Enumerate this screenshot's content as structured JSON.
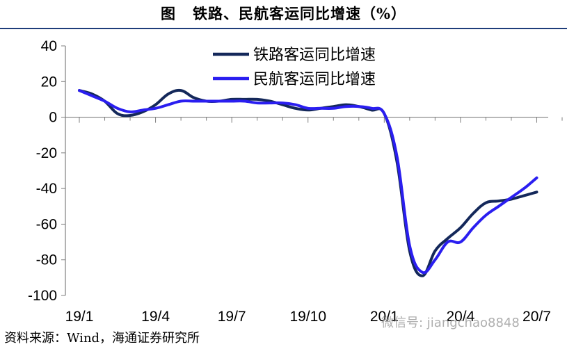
{
  "header": {
    "figure_label": "图",
    "title": "铁路、民航客运同比增速（%）"
  },
  "source": "资料来源：Wind，海通证券研究所",
  "watermark": "微信号: jiangchao8848",
  "colors": {
    "rail": "#14285a",
    "air": "#2a1ef0",
    "axis": "#7f7f7f",
    "text": "#000000"
  },
  "chart_data": {
    "type": "line",
    "title": "铁路、民航客运同比增速（%）",
    "ylim": [
      -100,
      40
    ],
    "yticks": [
      "40",
      "20",
      "0",
      "-20",
      "-40",
      "-60",
      "-80",
      "-100"
    ],
    "ytick_values": [
      40,
      20,
      0,
      -20,
      -40,
      -60,
      -80,
      -100
    ],
    "xlim": [
      0,
      19
    ],
    "xticks": [
      "19/1",
      "19/4",
      "19/7",
      "19/10",
      "20/1",
      "20/4",
      "20/7"
    ],
    "xtick_values": [
      0,
      3,
      6,
      9,
      12,
      15,
      18
    ],
    "legend_position": "top-left",
    "series": [
      {
        "name": "铁路客运同比增速",
        "color": "#14285a",
        "x": [
          0,
          0.5,
          1,
          1.5,
          2,
          2.5,
          3,
          3.5,
          4,
          4.5,
          5,
          5.5,
          6,
          6.5,
          7,
          7.5,
          8,
          8.5,
          9,
          9.5,
          10,
          10.5,
          11,
          11.5,
          12,
          12.5,
          13,
          13.5,
          14,
          14.5,
          15,
          15.5,
          16,
          16.5,
          17,
          17.5,
          18
        ],
        "values": [
          15,
          13,
          9,
          2,
          1,
          3,
          7,
          13,
          15,
          11,
          9,
          9,
          10,
          10,
          10,
          9,
          7,
          5,
          4,
          5,
          6,
          7,
          6,
          4,
          2,
          -25,
          -75,
          -89,
          -75,
          -68,
          -62,
          -54,
          -48,
          -47,
          -46,
          -44,
          -42
        ]
      },
      {
        "name": "民航客运同比增速",
        "color": "#2a1ef0",
        "x": [
          0,
          0.5,
          1,
          1.5,
          2,
          2.5,
          3,
          3.5,
          4,
          4.5,
          5,
          5.5,
          6,
          6.5,
          7,
          7.5,
          8,
          8.5,
          9,
          9.5,
          10,
          10.5,
          11,
          11.5,
          12,
          12.5,
          13,
          13.5,
          14,
          14.5,
          15,
          15.5,
          16,
          16.5,
          17,
          17.5,
          18
        ],
        "values": [
          15,
          12,
          9,
          5,
          3,
          4,
          5,
          7,
          9,
          9,
          9,
          9,
          9,
          9,
          8,
          8,
          8,
          7,
          5,
          5,
          5,
          6,
          6,
          5,
          2,
          -22,
          -72,
          -87,
          -80,
          -70,
          -70,
          -62,
          -55,
          -50,
          -45,
          -40,
          -34
        ]
      }
    ]
  }
}
